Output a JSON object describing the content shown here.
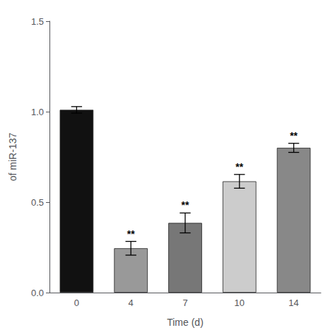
{
  "chart_data": {
    "type": "bar",
    "categories": [
      "0",
      "4",
      "7",
      "10",
      "14"
    ],
    "values": [
      1.01,
      0.245,
      0.385,
      0.615,
      0.8
    ],
    "errors": [
      0.018,
      0.038,
      0.055,
      0.038,
      0.025
    ],
    "colors": [
      "#111111",
      "#999999",
      "#777777",
      "#cccccc",
      "#888888"
    ],
    "significance": [
      null,
      "**",
      "**",
      "**",
      "**"
    ],
    "xlabel": "Time (d)",
    "ylabel": "of miR-137",
    "ylim": [
      0.0,
      1.5
    ],
    "yticks": [
      {
        "value": 0.0,
        "label": "0.0"
      },
      {
        "value": 0.5,
        "label": "0.5"
      },
      {
        "value": 1.0,
        "label": "1.0"
      },
      {
        "value": 1.5,
        "label": "1.5"
      }
    ],
    "grid": false
  }
}
